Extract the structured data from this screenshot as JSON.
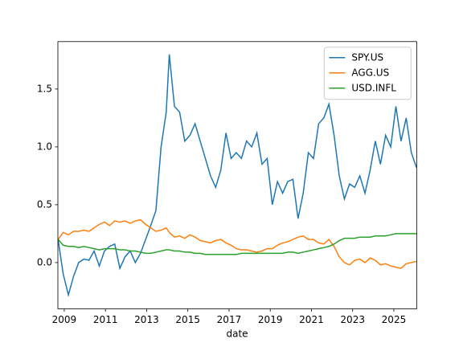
{
  "chart_data": {
    "type": "line",
    "xlabel": "date",
    "x": [
      2008.7,
      2008.95,
      2009.2,
      2009.45,
      2009.7,
      2009.95,
      2010.2,
      2010.45,
      2010.7,
      2010.95,
      2011.2,
      2011.45,
      2011.7,
      2011.95,
      2012.2,
      2012.45,
      2012.7,
      2012.95,
      2013.2,
      2013.45,
      2013.7,
      2013.95,
      2014.1,
      2014.35,
      2014.6,
      2014.85,
      2015.1,
      2015.35,
      2015.6,
      2015.85,
      2016.1,
      2016.35,
      2016.6,
      2016.85,
      2017.1,
      2017.35,
      2017.6,
      2017.85,
      2018.1,
      2018.35,
      2018.6,
      2018.85,
      2019.1,
      2019.35,
      2019.6,
      2019.85,
      2020.1,
      2020.35,
      2020.6,
      2020.85,
      2021.1,
      2021.35,
      2021.6,
      2021.85,
      2022.1,
      2022.35,
      2022.6,
      2022.85,
      2023.1,
      2023.35,
      2023.6,
      2023.85,
      2024.1,
      2024.35,
      2024.6,
      2024.85,
      2025.1,
      2025.35,
      2025.6,
      2025.85,
      2026.1
    ],
    "series": [
      {
        "name": "SPY.US",
        "color": "#1f77b4",
        "values": [
          0.2,
          -0.1,
          -0.28,
          -0.12,
          0.0,
          0.03,
          0.02,
          0.1,
          -0.03,
          0.1,
          0.14,
          0.16,
          -0.05,
          0.05,
          0.1,
          0.0,
          0.08,
          0.2,
          0.32,
          0.45,
          1.0,
          1.3,
          1.8,
          1.35,
          1.3,
          1.05,
          1.1,
          1.2,
          1.05,
          0.9,
          0.75,
          0.65,
          0.8,
          1.12,
          0.9,
          0.95,
          0.9,
          1.05,
          1.0,
          1.12,
          0.85,
          0.9,
          0.5,
          0.7,
          0.6,
          0.7,
          0.72,
          0.38,
          0.6,
          0.95,
          0.9,
          1.2,
          1.25,
          1.37,
          1.1,
          0.75,
          0.55,
          0.68,
          0.65,
          0.75,
          0.6,
          0.8,
          1.05,
          0.85,
          1.1,
          1.0,
          1.35,
          1.05,
          1.25,
          0.95,
          0.82
        ]
      },
      {
        "name": "AGG.US",
        "color": "#ff7f0e",
        "values": [
          0.2,
          0.26,
          0.24,
          0.27,
          0.27,
          0.28,
          0.27,
          0.3,
          0.33,
          0.35,
          0.32,
          0.36,
          0.35,
          0.36,
          0.34,
          0.36,
          0.37,
          0.33,
          0.3,
          0.27,
          0.28,
          0.3,
          0.26,
          0.22,
          0.23,
          0.21,
          0.24,
          0.22,
          0.19,
          0.18,
          0.17,
          0.19,
          0.2,
          0.17,
          0.15,
          0.12,
          0.11,
          0.11,
          0.1,
          0.09,
          0.1,
          0.12,
          0.12,
          0.15,
          0.17,
          0.18,
          0.2,
          0.22,
          0.23,
          0.2,
          0.2,
          0.17,
          0.16,
          0.2,
          0.14,
          0.05,
          0.0,
          -0.02,
          0.02,
          0.03,
          0.0,
          0.04,
          0.02,
          -0.02,
          -0.01,
          -0.03,
          -0.04,
          -0.05,
          -0.01,
          0.0,
          0.01
        ]
      },
      {
        "name": "USD.INFL",
        "color": "#2ca02c",
        "values": [
          0.2,
          0.15,
          0.14,
          0.14,
          0.13,
          0.14,
          0.13,
          0.12,
          0.11,
          0.12,
          0.12,
          0.12,
          0.11,
          0.11,
          0.1,
          0.1,
          0.09,
          0.08,
          0.08,
          0.09,
          0.1,
          0.11,
          0.11,
          0.1,
          0.1,
          0.09,
          0.09,
          0.08,
          0.08,
          0.07,
          0.07,
          0.07,
          0.07,
          0.07,
          0.07,
          0.07,
          0.08,
          0.08,
          0.08,
          0.08,
          0.08,
          0.08,
          0.08,
          0.08,
          0.08,
          0.09,
          0.09,
          0.08,
          0.09,
          0.1,
          0.11,
          0.12,
          0.13,
          0.14,
          0.16,
          0.19,
          0.21,
          0.21,
          0.21,
          0.22,
          0.22,
          0.22,
          0.23,
          0.23,
          0.23,
          0.24,
          0.25,
          0.25,
          0.25,
          0.25,
          0.25
        ]
      }
    ],
    "xlim": [
      2008.69,
      2026.11
    ],
    "xticks": [
      2009,
      2011,
      2013,
      2015,
      2017,
      2019,
      2021,
      2023,
      2025
    ],
    "ylim": [
      -0.4,
      1.91
    ],
    "yticks": [
      {
        "value": 0,
        "label": "0.0"
      },
      0.5,
      {
        "value": 1,
        "label": "1.0"
      },
      1.5
    ],
    "legend": "upper right"
  }
}
